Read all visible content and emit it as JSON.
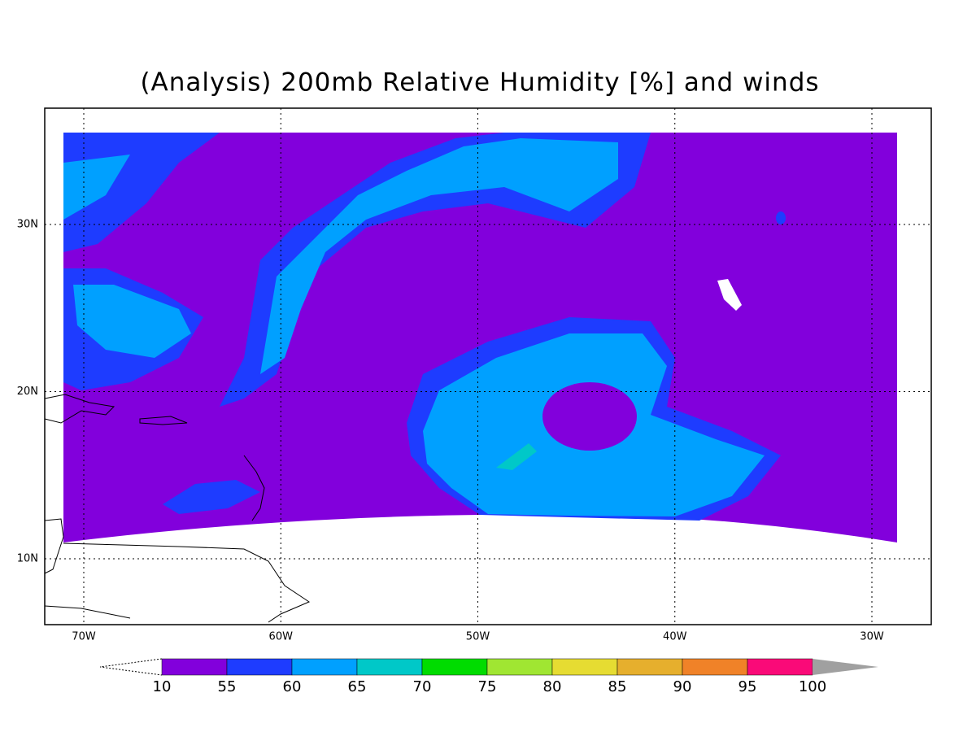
{
  "title": "(Analysis) 200mb Relative Humidity [%] and winds",
  "lon_labels": [
    "70W",
    "60W",
    "50W",
    "40W",
    "30W"
  ],
  "lat_labels": [
    "30N",
    "20N",
    "10N"
  ],
  "colorbar": {
    "levels": [
      10,
      55,
      60,
      65,
      70,
      75,
      80,
      85,
      90,
      95,
      100
    ],
    "colors": [
      "#8200dc",
      "#1e3cff",
      "#00a0ff",
      "#00c8c8",
      "#00dc00",
      "#a0e632",
      "#e6dc32",
      "#e6af2d",
      "#f08228",
      "#fa0a78"
    ],
    "over_color": "#a0a0a0"
  }
}
